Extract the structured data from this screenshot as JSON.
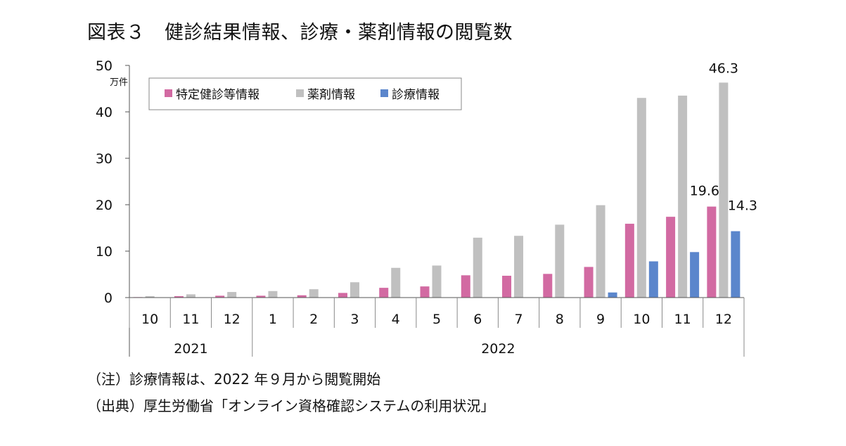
{
  "title": "図表３　健診結果情報、診療・薬剤情報の閲覧数",
  "notes": [
    "（注）診療情報は、2022 年９月から閲覧開始",
    "（出典）厚生労働省「オンライン資格確認システムの利用状況」"
  ],
  "chart_data": {
    "type": "bar",
    "title": "図表３　健診結果情報、診療・薬剤情報の閲覧数",
    "ylabel": "万件",
    "ylim": [
      0,
      50
    ],
    "yticks": [
      0,
      10,
      20,
      30,
      40,
      50
    ],
    "categories": [
      "10",
      "11",
      "12",
      "1",
      "2",
      "3",
      "4",
      "5",
      "6",
      "7",
      "8",
      "9",
      "10",
      "11",
      "12"
    ],
    "year_groups": [
      {
        "label": "2021",
        "count": 3
      },
      {
        "label": "2022",
        "count": 12
      }
    ],
    "legend_position": "top-left",
    "series": [
      {
        "name": "特定健診等情報",
        "color": "#d26aa2",
        "values": [
          0.1,
          0.3,
          0.4,
          0.4,
          0.5,
          1.0,
          2.1,
          2.4,
          4.8,
          4.7,
          5.1,
          6.6,
          15.9,
          17.4,
          19.6
        ]
      },
      {
        "name": "薬剤情報",
        "color": "#c0c0c0",
        "values": [
          0.3,
          0.7,
          1.2,
          1.4,
          1.8,
          3.3,
          6.4,
          6.9,
          12.9,
          13.3,
          15.7,
          19.9,
          43.0,
          43.5,
          46.3
        ]
      },
      {
        "name": "診療情報",
        "color": "#5b86cc",
        "values": [
          0,
          0,
          0,
          0,
          0,
          0,
          0,
          0,
          0,
          0,
          0,
          1.1,
          7.8,
          9.8,
          14.3
        ]
      }
    ],
    "data_labels": [
      {
        "text": "46.3",
        "series": 1,
        "index": 14
      },
      {
        "text": "19.6",
        "series": 0,
        "index": 14
      },
      {
        "text": "14.3",
        "series": 2,
        "index": 14
      }
    ]
  }
}
